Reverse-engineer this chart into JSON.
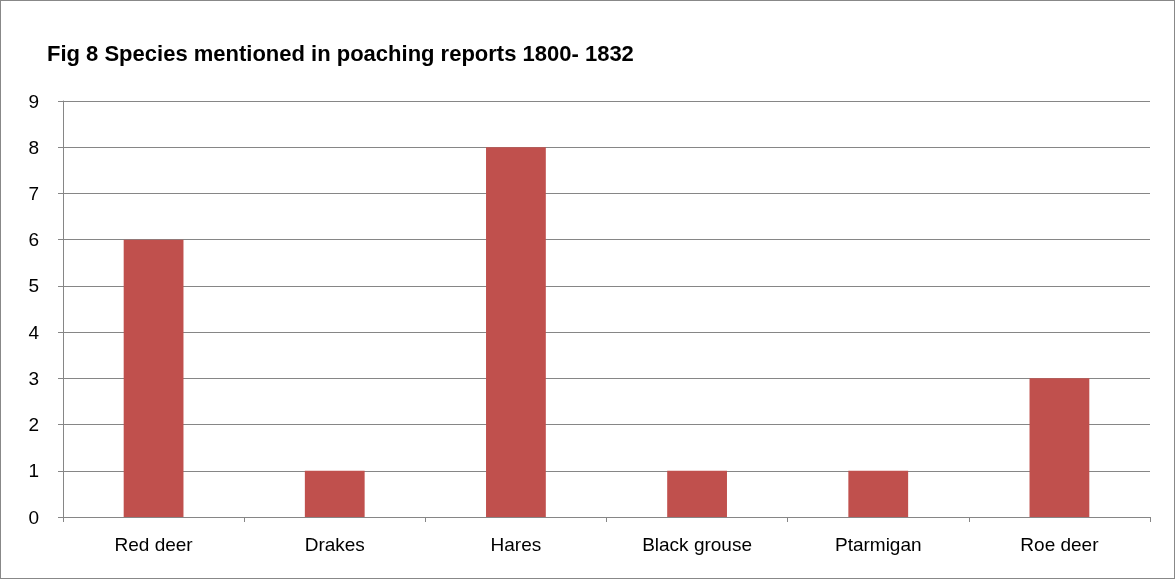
{
  "chart_data": {
    "type": "bar",
    "title": "Fig 8 Species mentioned in poaching reports 1800- 1832",
    "categories": [
      "Red deer",
      "Drakes",
      "Hares",
      "Black grouse",
      "Ptarmigan",
      "Roe deer"
    ],
    "values": [
      6,
      1,
      8,
      1,
      1,
      3
    ],
    "color": "#c0504d",
    "ylim": [
      0,
      9
    ],
    "yticks": [
      0,
      1,
      2,
      3,
      4,
      5,
      6,
      7,
      8,
      9
    ],
    "grid": "y"
  }
}
